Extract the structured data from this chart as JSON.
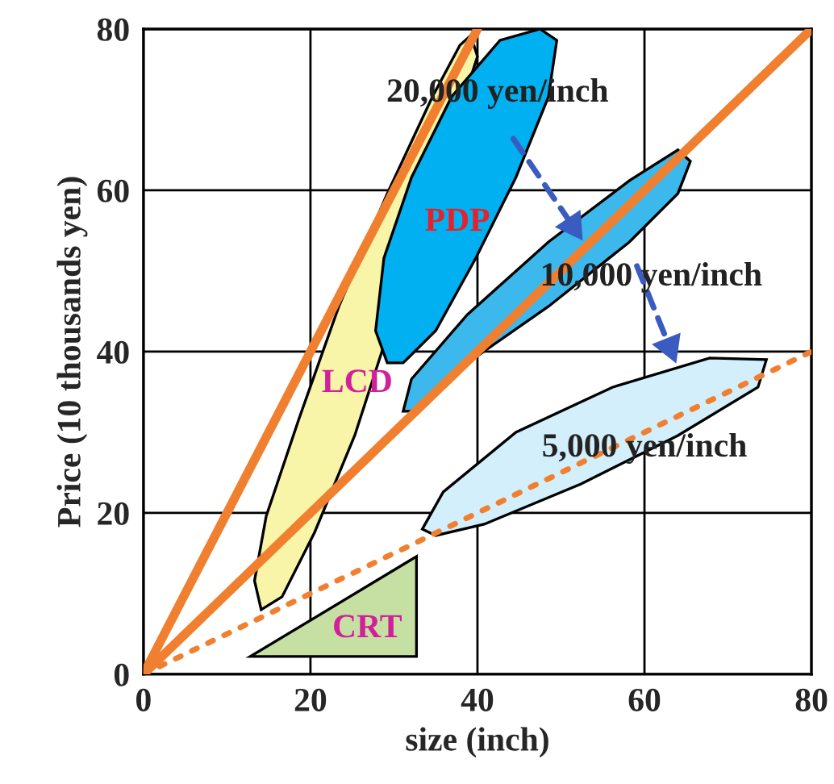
{
  "chart_data": {
    "type": "line",
    "xlabel": "size (inch)",
    "ylabel": "Price (10 thousands yen)",
    "xlim": [
      0,
      80
    ],
    "ylim": [
      0,
      80
    ],
    "xticks": [
      0,
      20,
      40,
      60,
      80
    ],
    "yticks": [
      0,
      20,
      40,
      60,
      80
    ],
    "grid": true,
    "legend": false,
    "series": [
      {
        "type": "area",
        "name": "LCD",
        "color": "#f8f4a8",
        "x": [
          14.1,
          13.3,
          14.7,
          18.6,
          23.4,
          29.2,
          34.6,
          37.9,
          39.2,
          40,
          38.8,
          35,
          30.1,
          25.3,
          20.5,
          16.6
        ],
        "values": [
          8,
          11.6,
          19.6,
          31.6,
          45.6,
          59.6,
          71.6,
          78,
          79.2,
          76.6,
          null,
          null,
          null,
          29.6,
          17.6,
          9.6
        ]
      },
      {
        "type": "area",
        "name": "PDP",
        "color": "#00b0f0",
        "x": [
          29.2,
          27.8,
          28.8,
          32.1,
          36.9,
          42.7,
          47.5,
          49.5,
          48.5,
          44.6,
          39.8,
          35,
          31.1
        ],
        "values": [
          38.6,
          42.6,
          51.6,
          61.6,
          71.6,
          78.6,
          80,
          78.6,
          71.6,
          61.6,
          51.6,
          42.6,
          38.6
        ]
      },
      {
        "type": "area",
        "color": "#3cb8ec",
        "x": [
          31.1,
          32.1,
          38.8,
          48.5,
          58.2,
          64,
          65.5,
          64,
          58.2,
          48.5,
          38.8,
          33
        ],
        "values": [
          32.6,
          36.6,
          44.6,
          53.6,
          61.2,
          65,
          63.6,
          59.6,
          53.6,
          45.6,
          38.6,
          32.6
        ]
      },
      {
        "type": "area",
        "color": "#d2effb",
        "x": [
          33.4,
          35.9,
          44.6,
          56.2,
          67.8,
          74.6,
          73.6,
          64,
          52.4,
          40.8,
          35
        ],
        "values": [
          18,
          22.6,
          30,
          35.6,
          39.2,
          39,
          35.6,
          29.6,
          23.6,
          18.6,
          17.2
        ]
      },
      {
        "color": "#f08030",
        "line_style": "solid",
        "x": [
          0,
          40
        ],
        "values": [
          0,
          80
        ]
      },
      {
        "color": "#f08030",
        "line_style": "solid",
        "x": [
          0,
          80
        ],
        "values": [
          0,
          80
        ]
      },
      {
        "color": "#f08030",
        "line_style": "dotted",
        "x": [
          0,
          80
        ],
        "values": [
          0,
          40
        ]
      },
      {
        "type": "area",
        "name": "CRT",
        "color": "#c6e0a4",
        "x": [
          12.8,
          32.7,
          32.7
        ],
        "values": [
          2.2,
          2.2,
          14.6
        ]
      },
      {
        "color": "#3a5cc0",
        "line_style": "dashed",
        "marker": "triangle",
        "x": [
          44.3,
          51.4
        ],
        "values": [
          66.4,
          55.6
        ]
      },
      {
        "color": "#3a5cc0",
        "line_style": "dashed",
        "marker": "triangle",
        "x": [
          59.1,
          63
        ],
        "values": [
          50.6,
          40.6
        ]
      }
    ],
    "annotations": [
      "20,000 yen/inch",
      "10,000 yen/inch",
      "5,000 yen/inch"
    ]
  }
}
